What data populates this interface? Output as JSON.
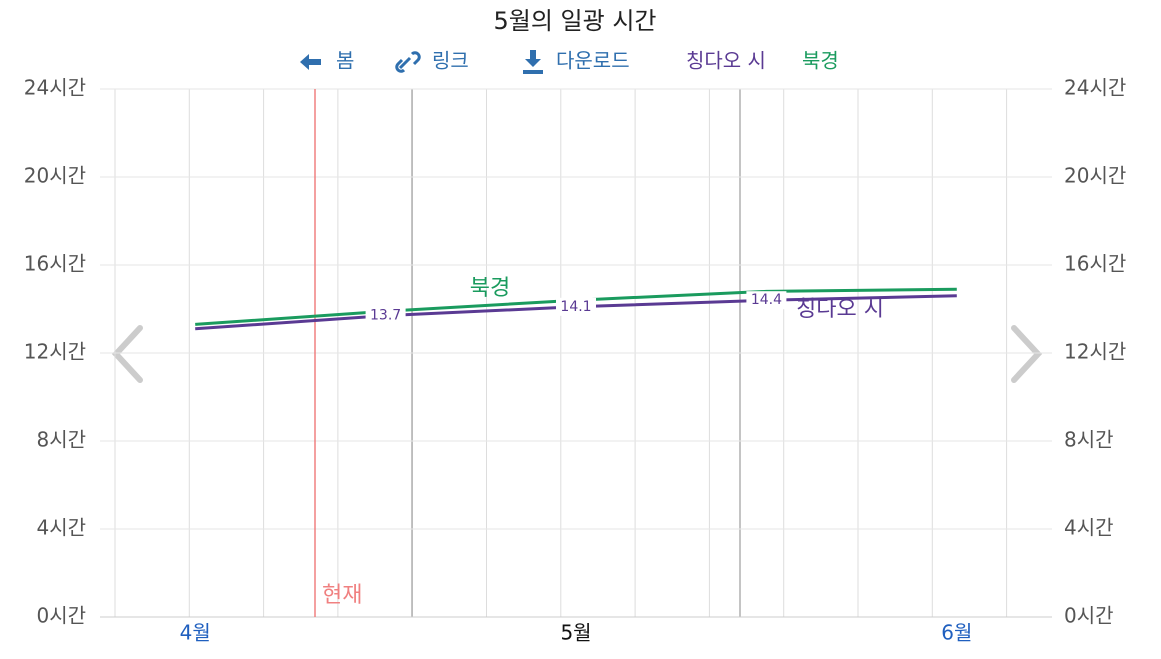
{
  "toolbar": {
    "back": "봄",
    "link": "링크",
    "download": "다운로드"
  },
  "chart_data": {
    "type": "line",
    "title": "5월의 일광 시간",
    "categories": [
      "4월",
      null,
      "5월",
      null,
      "6월"
    ],
    "series": [
      {
        "name": "칭다오 시",
        "color": "#5a3a93",
        "values": [
          13.1,
          13.7,
          14.1,
          14.4,
          14.6
        ]
      },
      {
        "name": "북경",
        "color": "#1a9b5e",
        "values": [
          13.3,
          13.9,
          14.4,
          14.8,
          14.9
        ]
      }
    ],
    "ylim": [
      0,
      24
    ],
    "yticks": [
      {
        "value": 0,
        "label": "0시간"
      },
      {
        "value": 4,
        "label": "4시간"
      },
      {
        "value": 8,
        "label": "8시간"
      },
      {
        "value": 12,
        "label": "12시간"
      },
      {
        "value": 16,
        "label": "16시간"
      },
      {
        "value": 20,
        "label": "20시간"
      },
      {
        "value": 24,
        "label": "24시간"
      }
    ],
    "grid": true,
    "annotation": "현재"
  }
}
